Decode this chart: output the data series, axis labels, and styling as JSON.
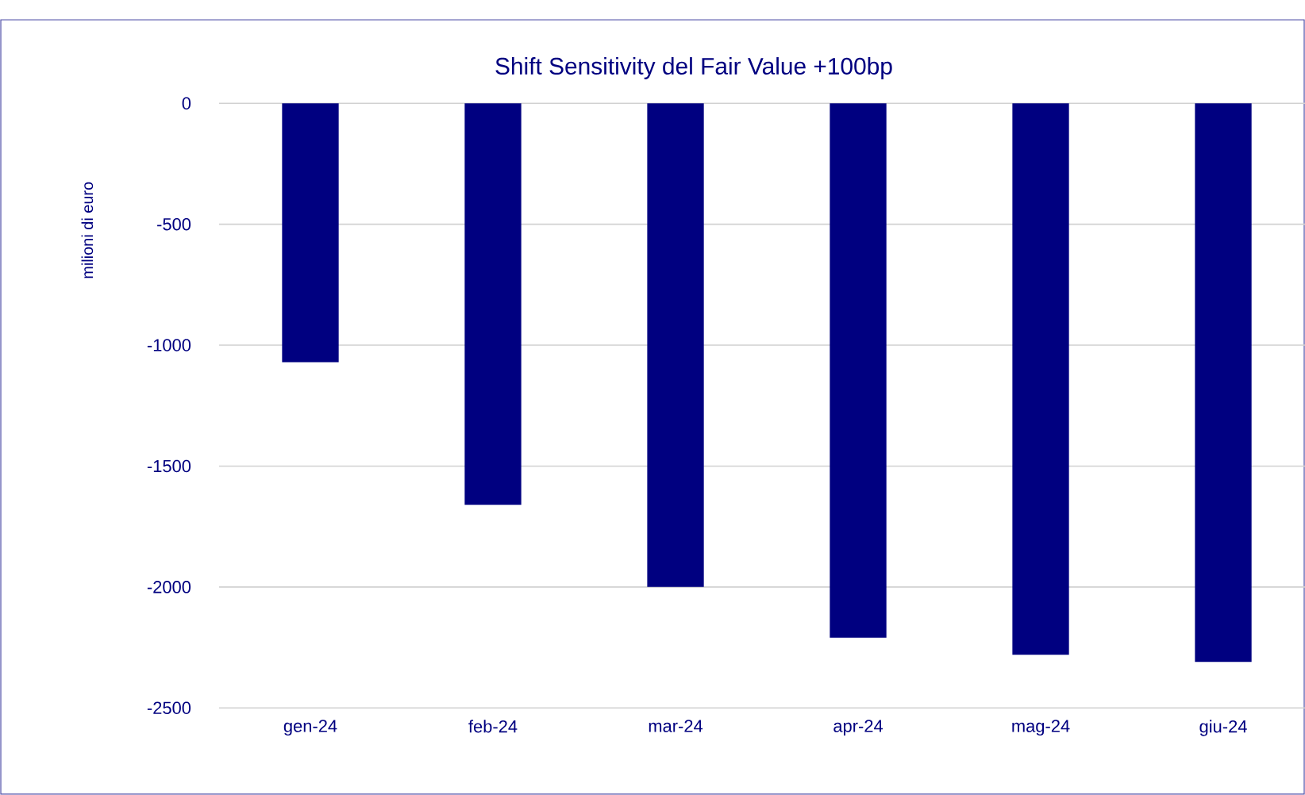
{
  "chart_data": {
    "type": "bar",
    "title": "Shift Sensitivity del Fair Value +100bp",
    "ylabel": "milioni di euro",
    "categories": [
      "gen-24",
      "feb-24",
      "mar-24",
      "apr-24",
      "mag-24",
      "giu-24"
    ],
    "values": [
      -1070,
      -1660,
      -2000,
      -2210,
      -2280,
      -2310
    ],
    "color": "#000080",
    "ylim": [
      -2500,
      0
    ],
    "yticks": [
      -2500,
      -2000,
      -1500,
      -1000,
      -500,
      0
    ],
    "grid": "y"
  }
}
